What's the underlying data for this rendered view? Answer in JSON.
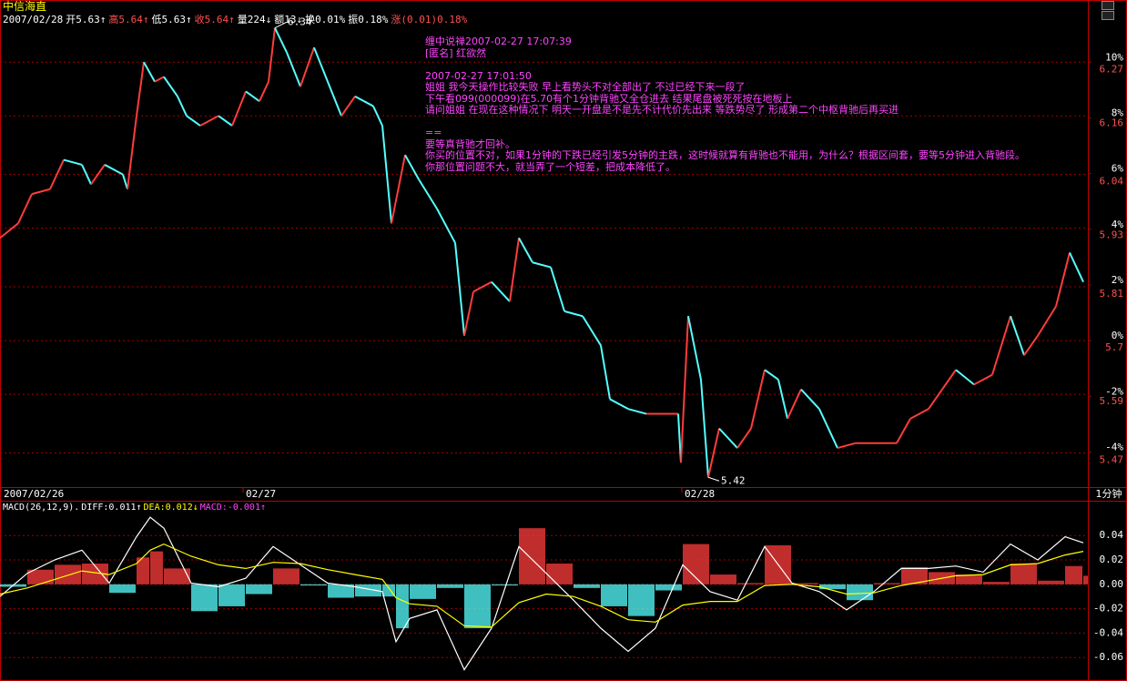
{
  "header": {
    "title": "中信海直",
    "items": [
      {
        "text": "2007/02/28",
        "color": "#ffffff"
      },
      {
        "text": "开5.63↑",
        "color": "#ffffff"
      },
      {
        "text": "高5.64↑",
        "color": "#ff5050"
      },
      {
        "text": "低5.63↑",
        "color": "#ffffff"
      },
      {
        "text": "收5.64↑",
        "color": "#ff5050"
      },
      {
        "text": "量224↓",
        "color": "#ffffff"
      },
      {
        "text": "额13↓",
        "color": "#ffffff"
      },
      {
        "text": "换0.01%",
        "color": "#ffffff"
      },
      {
        "text": "振0.18%",
        "color": "#ffffff"
      },
      {
        "text": "涨(0.01)0.18%",
        "color": "#ff5050"
      }
    ],
    "period": "1分钟"
  },
  "message": [
    [
      "缠中说禅2007-02-27 17:07:39",
      "[匿名] 红欲然"
    ],
    [
      "2007-02-27 17:01:50",
      "姐姐 我今天操作比较失败 早上看势头不对全部出了 不过已经下来一段了",
      "下午看099(000099)在5.70有个1分钟背驰又全仓进去 结果尾盘被死死按在地板上",
      "请问姐姐 在现在这种情况下 明天一开盘是不是先不计代价先出来 等跌势尽了 形成第二个中枢背驰后再买进"
    ],
    [
      "==",
      "要等真背驰才回补。",
      "你买的位置不对，如果1分钟的下跌已经引发5分钟的主跌，这时候就算有背驰也不能用，为什么？根据区间套，要等5分钟进入背驰段。",
      "你那位置问题不大，就当弄了一个短差，把成本降低了。"
    ]
  ],
  "chart_data": [
    {
      "type": "candlestick-line",
      "x": [
        0,
        20,
        35,
        55,
        70,
        90,
        100,
        115,
        135,
        140,
        150,
        158,
        170,
        180,
        195,
        205,
        220,
        240,
        255,
        270,
        285,
        295,
        302,
        315,
        330,
        345,
        360,
        375,
        390,
        410,
        420,
        430,
        445,
        460,
        480,
        500,
        510,
        520,
        540,
        560,
        570,
        585,
        605,
        620,
        640,
        660,
        670,
        690,
        710,
        745,
        748,
        756,
        770,
        778,
        790,
        810,
        825,
        840,
        855,
        865,
        880,
        900,
        920,
        940,
        970,
        985,
        1000,
        1020,
        1035,
        1050,
        1070,
        1090,
        1110,
        1125,
        1140,
        1160,
        1175,
        1190
      ],
      "values": [
        5.91,
        5.94,
        6.0,
        6.01,
        6.07,
        6.06,
        6.02,
        6.06,
        6.04,
        6.01,
        6.16,
        6.27,
        6.23,
        6.24,
        6.2,
        6.16,
        6.14,
        6.16,
        6.14,
        6.21,
        6.19,
        6.23,
        6.34,
        6.29,
        6.22,
        6.3,
        6.23,
        6.16,
        6.2,
        6.18,
        6.14,
        5.94,
        6.08,
        6.03,
        5.97,
        5.9,
        5.71,
        5.8,
        5.82,
        5.78,
        5.91,
        5.86,
        5.85,
        5.76,
        5.75,
        5.69,
        5.58,
        5.56,
        5.55,
        5.55,
        5.45,
        5.75,
        5.62,
        5.42,
        5.52,
        5.48,
        5.52,
        5.64,
        5.62,
        5.54,
        5.6,
        5.56,
        5.48,
        5.49,
        5.49,
        5.49,
        5.54,
        5.56,
        5.6,
        5.64,
        5.61,
        5.63,
        5.75,
        5.67,
        5.71,
        5.77,
        5.88,
        5.82
      ],
      "up_color": "#ff3c3c",
      "down_color": "#54ffff",
      "xlim": [
        0,
        1195
      ],
      "xticks": [
        {
          "value": 0,
          "label": "2007/02/26"
        },
        {
          "value": 266,
          "label": "02/27"
        },
        {
          "value": 748,
          "label": "02/28"
        }
      ],
      "ylim": [
        5.4,
        6.36
      ],
      "yticks": [
        6.27,
        6.16,
        6.04,
        5.93,
        5.81,
        5.7,
        5.59,
        5.47
      ],
      "y2lim": [
        -5.26,
        11.58
      ],
      "y2ticks": [
        {
          "value": 10,
          "label": "10%"
        },
        {
          "value": 8,
          "label": "8%"
        },
        {
          "value": 6,
          "label": "6%"
        },
        {
          "value": 4,
          "label": "4%"
        },
        {
          "value": 2,
          "label": "2%"
        },
        {
          "value": 0,
          "label": "0%"
        },
        {
          "value": -2,
          "label": "-2%"
        },
        {
          "value": -4,
          "label": "-4%"
        }
      ],
      "grid": true,
      "grid_color": "#a00000",
      "annotations": [
        {
          "x": 302,
          "value": 6.34
        },
        {
          "x": 778,
          "value": 5.42
        }
      ]
    },
    {
      "type": "macd",
      "legend": [
        {
          "text": "MACD(26,12,9).",
          "color": "#ffffff"
        },
        {
          "text": "DIFF:0.011↑",
          "color": "#ffffff"
        },
        {
          "text": "DEA:0.012↓",
          "color": "#ffff00"
        },
        {
          "text": "MACD:-0.001↑",
          "color": "#ff44ff"
        }
      ],
      "x": [
        0,
        30,
        60,
        90,
        120,
        150,
        165,
        180,
        210,
        240,
        270,
        300,
        330,
        360,
        390,
        420,
        435,
        450,
        480,
        510,
        540,
        570,
        600,
        630,
        660,
        690,
        720,
        750,
        780,
        810,
        840,
        870,
        900,
        930,
        960,
        990,
        1020,
        1050,
        1080,
        1110,
        1140,
        1170,
        1190
      ],
      "series": [
        {
          "color": "#ffffff",
          "values": [
            -0.01,
            0.009,
            0.02,
            0.028,
            0.001,
            0.039,
            0.055,
            0.046,
            0.001,
            -0.002,
            0.005,
            0.031,
            0.016,
            0.001,
            -0.002,
            -0.006,
            -0.047,
            -0.028,
            -0.021,
            -0.07,
            -0.036,
            0.031,
            0.009,
            -0.013,
            -0.036,
            -0.055,
            -0.036,
            0.016,
            -0.006,
            -0.013,
            0.031,
            0.001,
            -0.006,
            -0.021,
            -0.006,
            0.013,
            0.013,
            0.015,
            0.01,
            0.033,
            0.02,
            0.039,
            0.034
          ]
        },
        {
          "color": "#ffff00",
          "values": [
            -0.008,
            -0.003,
            0.004,
            0.011,
            0.008,
            0.017,
            0.028,
            0.033,
            0.023,
            0.016,
            0.013,
            0.018,
            0.017,
            0.012,
            0.008,
            0.004,
            -0.011,
            -0.016,
            -0.018,
            -0.034,
            -0.035,
            -0.015,
            -0.008,
            -0.01,
            -0.018,
            -0.029,
            -0.031,
            -0.017,
            -0.014,
            -0.014,
            -0.001,
            0.0,
            -0.002,
            -0.008,
            -0.007,
            -0.001,
            0.003,
            0.007,
            0.008,
            0.016,
            0.017,
            0.024,
            0.027
          ]
        }
      ],
      "bars": [
        -0.002,
        0.012,
        0.016,
        0.017,
        -0.007,
        0.022,
        0.027,
        0.013,
        -0.022,
        -0.018,
        -0.008,
        0.013,
        -0.001,
        -0.011,
        -0.01,
        -0.01,
        -0.036,
        -0.012,
        -0.003,
        -0.036,
        -0.001,
        0.046,
        0.017,
        -0.003,
        -0.018,
        -0.026,
        -0.005,
        0.033,
        0.008,
        0.001,
        0.032,
        0.001,
        -0.004,
        -0.013,
        0.001,
        0.014,
        0.01,
        0.008,
        0.002,
        0.017,
        0.003,
        0.015,
        0.007
      ],
      "up_color": "#ff3c3c",
      "down_color": "#54ffff",
      "xlim": [
        0,
        1195
      ],
      "ylim": [
        -0.077,
        0.067
      ],
      "yticks": [
        0.04,
        0.02,
        {
          "value": 0,
          "label": "0.00"
        },
        -0.02,
        -0.04,
        -0.06
      ],
      "grid": true,
      "grid_color": "#a00000"
    }
  ]
}
